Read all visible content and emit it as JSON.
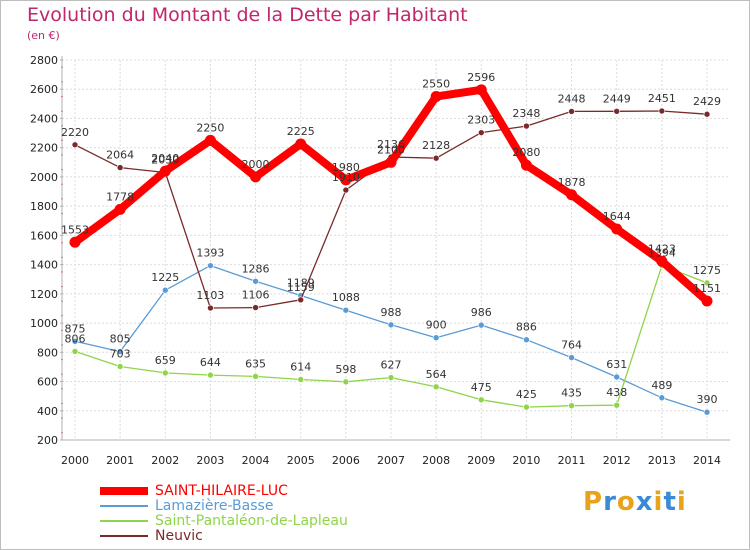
{
  "title": "Evolution du Montant de la Dette par Habitant",
  "subtitle": "(en €)",
  "brand": {
    "text": "Proxiti",
    "letter_colors": [
      "#e8a21c",
      "#3a8bd6",
      "#e8a21c",
      "#3a8bd6",
      "#e8a21c",
      "#3a8bd6",
      "#e8a21c"
    ]
  },
  "chart_data": {
    "type": "line",
    "categories": [
      "2000",
      "2001",
      "2002",
      "2003",
      "2004",
      "2005",
      "2006",
      "2007",
      "2008",
      "2009",
      "2010",
      "2011",
      "2012",
      "2013",
      "2014"
    ],
    "ylim": [
      200,
      2800
    ],
    "yticks": [
      200,
      400,
      600,
      800,
      1000,
      1200,
      1400,
      1600,
      1800,
      2000,
      2200,
      2400,
      2600,
      2800
    ],
    "grid": true,
    "legend_position": "bottom-left",
    "series": [
      {
        "name": "SAINT-HILAIRE-LUC",
        "color": "#ff0000",
        "values": [
          1553,
          1778,
          2040,
          2250,
          2000,
          2225,
          1980,
          2100,
          2550,
          2596,
          2080,
          1878,
          1644,
          1423,
          1151
        ]
      },
      {
        "name": "Lamazière-Basse",
        "color": "#5b9bd5",
        "values": [
          875,
          805,
          1225,
          1393,
          1286,
          1189,
          1088,
          988,
          900,
          986,
          886,
          764,
          631,
          489,
          390
        ]
      },
      {
        "name": "Saint-Pantaléon-de-Lapleau",
        "color": "#8fd44a",
        "values": [
          806,
          703,
          659,
          644,
          635,
          614,
          598,
          627,
          564,
          475,
          425,
          435,
          438,
          1394,
          1275
        ]
      },
      {
        "name": "Neuvic",
        "color": "#7b2a2a",
        "values": [
          2220,
          2064,
          2030,
          1103,
          1106,
          1159,
          1910,
          2136,
          2128,
          2303,
          2348,
          2448,
          2449,
          2451,
          2429
        ]
      }
    ]
  }
}
